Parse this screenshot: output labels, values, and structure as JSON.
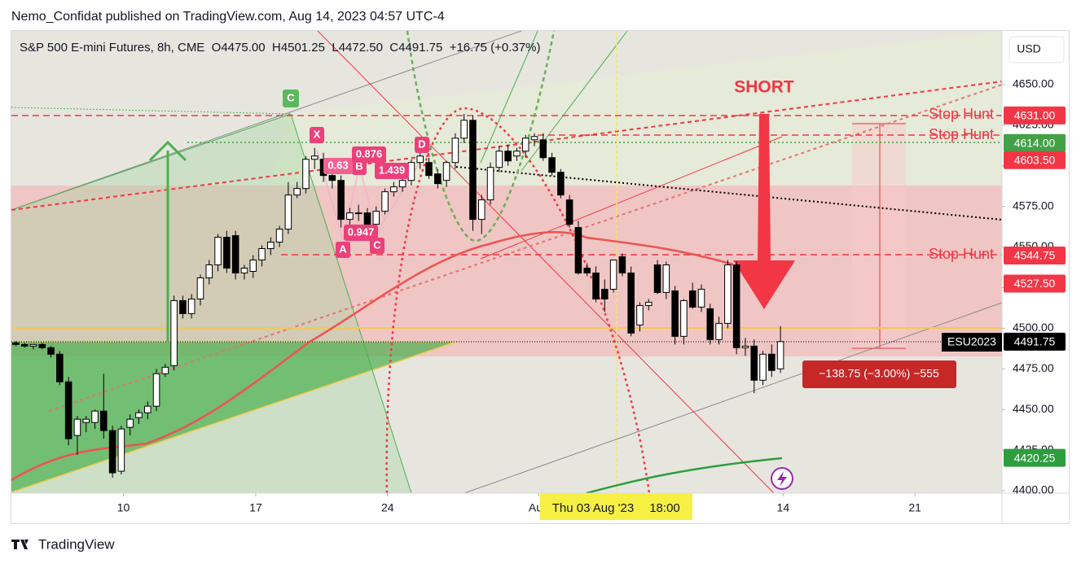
{
  "header": {
    "publisher": "Nemo_Confidat published on TradingView.com, Aug 14, 2023 04:57 UTC-4"
  },
  "toolbar": {
    "currency": "USD"
  },
  "footer": {
    "logo": "TradingView"
  },
  "chart_data": {
    "type": "candlestick",
    "legend": {
      "symbol": "S&P 500 E-mini Futures, 8h, CME",
      "ohlc_labels": [
        "O",
        "H",
        "L",
        "C"
      ],
      "ohlc_values": [
        "4475.00",
        "4501.25",
        "4472.50",
        "4491.75"
      ],
      "change": "+16.75 (+0.37%)"
    },
    "up_color": "#ffffff",
    "down_color": "#000000",
    "wick_color": "#000000",
    "open": [
      4491,
      4490,
      4489,
      4490,
      4488,
      4484,
      4467,
      4434,
      4442,
      4442,
      4449,
      4437,
      4412,
      4439,
      4445,
      4448,
      4452,
      4472,
      4477,
      4517,
      4509,
      4518,
      4531,
      4539,
      4556,
      4557,
      4534,
      4535,
      4542,
      4549,
      4553,
      4561,
      4582,
      4586,
      4604,
      4604,
      4594,
      4591,
      4567,
      4571,
      4571,
      4564,
      4572,
      4584,
      4587,
      4591,
      4602,
      4602,
      4595,
      4591,
      4602,
      4617,
      4628,
      4567,
      4579,
      4599,
      4609,
      4606,
      4609,
      4616,
      4616,
      4605,
      4596,
      4579,
      4562,
      4537,
      4534,
      4524,
      4524,
      4544,
      4534,
      4502,
      4514,
      4539,
      4522,
      4523,
      4495,
      4523,
      4513,
      4512,
      4493,
      4503,
      4539,
      4488,
      4489,
      4468,
      4484,
      4475
    ],
    "high": [
      4492,
      4491,
      4490,
      4491,
      4489,
      4486,
      4470,
      4446,
      4446,
      4450,
      4472,
      4440,
      4440,
      4447,
      4450,
      4455,
      4475,
      4478,
      4520,
      4520,
      4521,
      4533,
      4542,
      4558,
      4560,
      4560,
      4539,
      4545,
      4551,
      4556,
      4563,
      4590,
      4590,
      4606,
      4611,
      4608,
      4600,
      4594,
      4574,
      4576,
      4574,
      4575,
      4586,
      4590,
      4592,
      4604,
      4608,
      4605,
      4598,
      4603,
      4620,
      4632,
      4631,
      4582,
      4602,
      4612,
      4613,
      4611,
      4619,
      4620,
      4620,
      4608,
      4598,
      4582,
      4566,
      4540,
      4538,
      4530,
      4542,
      4546,
      4538,
      4516,
      4518,
      4542,
      4541,
      4526,
      4518,
      4528,
      4527,
      4515,
      4507,
      4542,
      4541,
      4494,
      4493,
      4486,
      4490,
      4501.25
    ],
    "low": [
      4489,
      4488,
      4487,
      4487,
      4482,
      4465,
      4428,
      4422,
      4436,
      4438,
      4432,
      4408,
      4410,
      4434,
      4441,
      4444,
      4449,
      4470,
      4474,
      4506,
      4506,
      4514,
      4527,
      4535,
      4534,
      4530,
      4530,
      4531,
      4538,
      4545,
      4550,
      4558,
      4580,
      4583,
      4598,
      4590,
      4586,
      4562,
      4563,
      4566,
      4560,
      4561,
      4570,
      4581,
      4584,
      4588,
      4598,
      4592,
      4586,
      4587,
      4598,
      4614,
      4560,
      4558,
      4576,
      4596,
      4600,
      4603,
      4605,
      4612,
      4603,
      4594,
      4580,
      4562,
      4533,
      4532,
      4516,
      4510,
      4522,
      4532,
      4495,
      4498,
      4511,
      4521,
      4518,
      4490,
      4490,
      4512,
      4510,
      4490,
      4490,
      4500,
      4484,
      4483,
      4460,
      4465,
      4470,
      4472.5
    ],
    "close": [
      4490,
      4489,
      4490,
      4488,
      4484,
      4467,
      4432,
      4444,
      4444,
      4449,
      4437,
      4411,
      4438,
      4444,
      4448,
      4452,
      4472,
      4476,
      4517,
      4509,
      4518,
      4531,
      4539,
      4556,
      4537,
      4534,
      4537,
      4542,
      4549,
      4553,
      4561,
      4582,
      4586,
      4604,
      4606,
      4594,
      4591,
      4567,
      4571,
      4570.5,
      4564,
      4572,
      4584,
      4587,
      4591,
      4602,
      4606,
      4594,
      4589,
      4602,
      4617,
      4628,
      4567,
      4579,
      4599,
      4609,
      4603,
      4609,
      4617,
      4618,
      4605,
      4596,
      4582,
      4564,
      4534,
      4534,
      4518,
      4518,
      4542,
      4534,
      4497,
      4514,
      4516,
      4522,
      4539,
      4495,
      4517,
      4513,
      4524,
      4493,
      4503,
      4539,
      4488,
      4489,
      4468,
      4484,
      4474,
      4491.75
    ],
    "xlim": [
      -0.5,
      112.2
    ],
    "xticks": [
      {
        "value": 12.25,
        "label": "10"
      },
      {
        "value": 27.3,
        "label": "17"
      },
      {
        "value": 42.3,
        "label": "24"
      },
      {
        "value": 59.5,
        "label": "Aug"
      },
      {
        "value": 87.3,
        "label": "14"
      },
      {
        "value": 102.3,
        "label": "21"
      }
    ],
    "ylim": [
      4398.5,
      4683
    ],
    "yticks": [
      {
        "value": 4400,
        "label": "4400.00"
      },
      {
        "value": 4425,
        "label": "4425.00"
      },
      {
        "value": 4450,
        "label": "4450.00"
      },
      {
        "value": 4475,
        "label": "4475.00"
      },
      {
        "value": 4500,
        "label": "4500.00"
      },
      {
        "value": 4525,
        "label": "4525.00"
      },
      {
        "value": 4550,
        "label": "4550.00"
      },
      {
        "value": 4575,
        "label": "4575.00"
      },
      {
        "value": 4600,
        "label": "4600.00"
      },
      {
        "value": 4625,
        "label": "4625.00"
      },
      {
        "value": 4650,
        "label": "4650.00"
      }
    ],
    "grid": false,
    "price_tags": [
      {
        "value": 4631,
        "label": "4631.00",
        "color": "#f23645"
      },
      {
        "value": 4614,
        "label": "4614.00",
        "color": "#43a047"
      },
      {
        "value": 4603.5,
        "label": "4603.50",
        "color": "#f23645"
      },
      {
        "value": 4544.75,
        "label": "4544.75",
        "color": "#f23645"
      },
      {
        "value": 4527.5,
        "label": "4527.50",
        "color": "#f23645"
      },
      {
        "value": 4491.75,
        "label": "4491.75",
        "color": "#000000"
      },
      {
        "value": 4420.25,
        "label": "4420.25",
        "color": "#2e9d3e"
      }
    ],
    "annotations": {
      "short": "SHORT",
      "stop_hunts": [
        "Stop Hunt",
        "Stop Hunt",
        "Stop Hunt"
      ],
      "wave_label": "C",
      "pattern_points": [
        "X",
        "A",
        "B",
        "C",
        "D"
      ],
      "ratios": [
        "0.63",
        "0.876",
        "1.439",
        "0.947"
      ],
      "measure": "−138.75 (−3.00%) −555",
      "symbol_tag": "ESU2023",
      "crosshair_date": "Thu 03 Aug '23",
      "crosshair_time": "18:00"
    }
  }
}
